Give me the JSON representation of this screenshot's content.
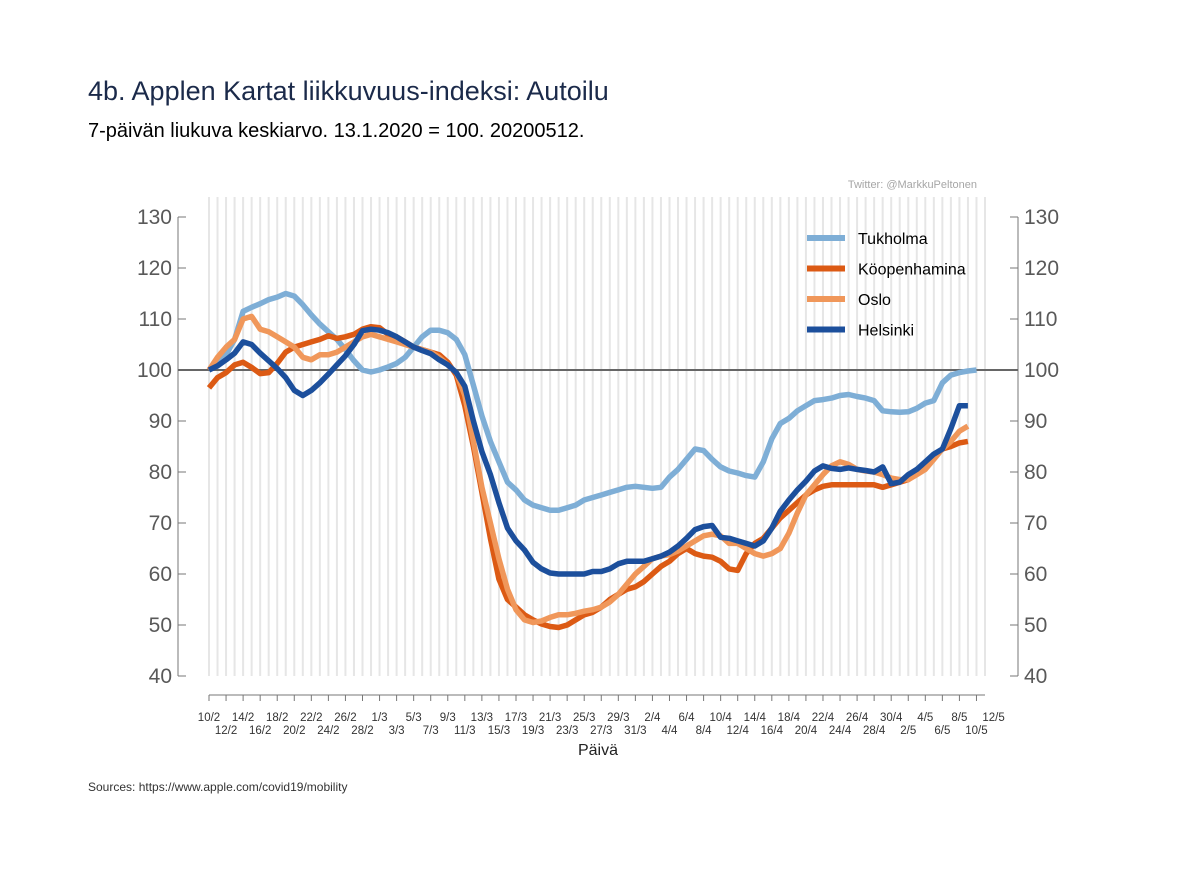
{
  "title": "4b. Applen Kartat liikkuvuus-indeksi: Autoilu",
  "subtitle": "7-päivän liukuva keskiarvo. 13.1.2020 = 100. 20200512.",
  "credit": "Twitter: @MarkkuPeltonen",
  "source": "Sources: https://www.apple.com/covid19/mobility",
  "chart_data": {
    "type": "line",
    "title": "4b. Applen Kartat liikkuvuus-indeksi: Autoilu",
    "subtitle": "7-päivän liukuva keskiarvo. 13.1.2020 = 100. 20200512.",
    "xlabel": "Päivä",
    "ylabel": "",
    "x_start": "10/2",
    "x_end": "12/5",
    "ylim": [
      40,
      130
    ],
    "yticks": [
      40,
      50,
      60,
      70,
      80,
      90,
      100,
      110,
      120,
      130
    ],
    "reference_line": 100,
    "grid": "vertical daily",
    "legend_position": "top-right",
    "xticks_row1": [
      "10/2",
      "14/2",
      "18/2",
      "22/2",
      "26/2",
      "1/3",
      "5/3",
      "9/3",
      "13/3",
      "17/3",
      "21/3",
      "25/3",
      "29/3",
      "2/4",
      "6/4",
      "10/4",
      "14/4",
      "18/4",
      "22/4",
      "26/4",
      "30/4",
      "4/5",
      "8/5",
      "12/5"
    ],
    "xticks_row2": [
      "12/2",
      "16/2",
      "20/2",
      "24/2",
      "28/2",
      "3/3",
      "7/3",
      "11/3",
      "15/3",
      "19/3",
      "23/3",
      "27/3",
      "31/3",
      "4/4",
      "8/4",
      "12/4",
      "16/4",
      "20/4",
      "24/4",
      "28/4",
      "2/5",
      "6/5",
      "10/5"
    ],
    "dates": [
      "10/2",
      "11/2",
      "12/2",
      "13/2",
      "14/2",
      "15/2",
      "16/2",
      "17/2",
      "18/2",
      "19/2",
      "20/2",
      "21/2",
      "22/2",
      "23/2",
      "24/2",
      "25/2",
      "26/2",
      "27/2",
      "28/2",
      "29/2",
      "1/3",
      "2/3",
      "3/3",
      "4/3",
      "5/3",
      "6/3",
      "7/3",
      "8/3",
      "9/3",
      "10/3",
      "11/3",
      "12/3",
      "13/3",
      "14/3",
      "15/3",
      "16/3",
      "17/3",
      "18/3",
      "19/3",
      "20/3",
      "21/3",
      "22/3",
      "23/3",
      "24/3",
      "25/3",
      "26/3",
      "27/3",
      "28/3",
      "29/3",
      "30/3",
      "31/3",
      "1/4",
      "2/4",
      "3/4",
      "4/4",
      "5/4",
      "6/4",
      "7/4",
      "8/4",
      "9/4",
      "10/4",
      "11/4",
      "12/4",
      "13/4",
      "14/4",
      "15/4",
      "16/4",
      "17/4",
      "18/4",
      "19/4",
      "20/4",
      "21/4",
      "22/4",
      "23/4",
      "24/4",
      "25/4",
      "26/4",
      "27/4",
      "28/4",
      "29/4",
      "30/4",
      "1/5",
      "2/5",
      "3/5",
      "4/5",
      "5/5",
      "6/5",
      "7/5",
      "8/5",
      "9/5",
      "10/5"
    ],
    "series": [
      {
        "name": "Tukholma",
        "color": "#7eaed6",
        "values": [
          100,
          101.5,
          103,
          106,
          111.5,
          112.3,
          113,
          113.8,
          114.3,
          115,
          114.5,
          112.8,
          110.8,
          109,
          107.5,
          106,
          104,
          101.8,
          100,
          99.6,
          100,
          100.6,
          101.3,
          102.5,
          104.5,
          106.5,
          107.8,
          107.8,
          107.3,
          106,
          103,
          97,
          91,
          86,
          82,
          78,
          76.5,
          74.5,
          73.5,
          73,
          72.5,
          72.5,
          73,
          73.5,
          74.5,
          75,
          75.5,
          76,
          76.5,
          77,
          77.2,
          77,
          76.8,
          77,
          79,
          80.5,
          82.5,
          84.5,
          84.2,
          82.5,
          81,
          80.2,
          79.8,
          79.3,
          79,
          82,
          86.5,
          89.5,
          90.5,
          92,
          93,
          94,
          94.2,
          94.5,
          95,
          95.2,
          94.8,
          94.5,
          94,
          92,
          91.8,
          91.7,
          91.8,
          92.5,
          93.5,
          94,
          97.5,
          99,
          99.5,
          99.8,
          100
        ]
      },
      {
        "name": "Köopenhamina",
        "color": "#dc5a14",
        "values": [
          96.5,
          98.5,
          99.5,
          101,
          101.5,
          100.5,
          99.3,
          99.5,
          101.3,
          103.5,
          104.5,
          105,
          105.5,
          106,
          106.7,
          106.2,
          106.5,
          107,
          108,
          108.5,
          108.3,
          107,
          106.5,
          105.5,
          104.5,
          104,
          103.5,
          103,
          101.5,
          99,
          93,
          85,
          76,
          67,
          59,
          55,
          53.5,
          52,
          51,
          50.2,
          49.7,
          49.5,
          50,
          51,
          52,
          52.5,
          53.5,
          55,
          56,
          57,
          57.5,
          58.5,
          60,
          61.5,
          62.5,
          64,
          65,
          64,
          63.5,
          63.3,
          62.5,
          61,
          60.7,
          64,
          66,
          67,
          69,
          71,
          72.5,
          74,
          75.5,
          76.5,
          77.2,
          77.5,
          77.5,
          77.5,
          77.5,
          77.5,
          77.5,
          77,
          77.5,
          78,
          78.5,
          80,
          81.2,
          83,
          84.5,
          85,
          85.7,
          86,
          86
        ],
        "end_index": 89
      },
      {
        "name": "Oslo",
        "color": "#f0975a",
        "values": [
          100,
          102.5,
          104.5,
          106,
          110,
          110.5,
          108,
          107.5,
          106.5,
          105.5,
          104.5,
          102.5,
          102,
          103,
          103,
          103.5,
          104.5,
          105.5,
          106.5,
          107,
          106.5,
          106,
          105.5,
          105,
          104.5,
          104,
          103.5,
          102.5,
          101,
          99.5,
          95,
          86,
          77,
          70,
          63,
          57,
          53,
          51,
          50.5,
          50.8,
          51.5,
          52,
          52,
          52.3,
          52.7,
          53,
          53.5,
          54.5,
          56,
          58,
          60,
          61.5,
          63,
          63.5,
          63.8,
          64.5,
          65.5,
          66.5,
          67.5,
          67.8,
          67.5,
          66,
          66,
          65,
          64,
          63.5,
          64,
          65,
          68,
          72,
          75.5,
          77.5,
          79.5,
          81.2,
          82,
          81.5,
          80.5,
          80.2,
          80,
          79.5,
          78.8,
          78.5,
          78.5,
          79.5,
          80.5,
          82.5,
          84.5,
          86,
          88,
          89,
          89.5
        ],
        "end_index": 89
      },
      {
        "name": "Helsinki",
        "color": "#1c4f9c",
        "values": [
          100,
          100.8,
          102,
          103.3,
          105.5,
          105,
          103.3,
          101.8,
          100.3,
          98.5,
          96,
          95,
          96,
          97.5,
          99.2,
          101,
          102.8,
          105,
          107.7,
          108,
          107.8,
          107.3,
          106.5,
          105.5,
          104.5,
          103.8,
          103.2,
          102,
          101,
          99.5,
          96.8,
          90,
          84,
          79.5,
          74,
          69,
          66.5,
          64.7,
          62.3,
          61,
          60.2,
          60,
          60,
          60,
          60,
          60.5,
          60.5,
          61,
          62,
          62.5,
          62.5,
          62.5,
          63,
          63.5,
          64.3,
          65.5,
          67,
          68.7,
          69.3,
          69.5,
          67.2,
          67,
          66.5,
          66,
          65.5,
          66.5,
          69,
          72.3,
          74.5,
          76.5,
          78.2,
          80.2,
          81.2,
          80.7,
          80.5,
          80.8,
          80.5,
          80.3,
          80,
          81,
          77.7,
          78,
          79.5,
          80.5,
          82,
          83.5,
          84.5,
          88.5,
          93,
          93,
          93
        ],
        "end_index": 89
      }
    ]
  }
}
